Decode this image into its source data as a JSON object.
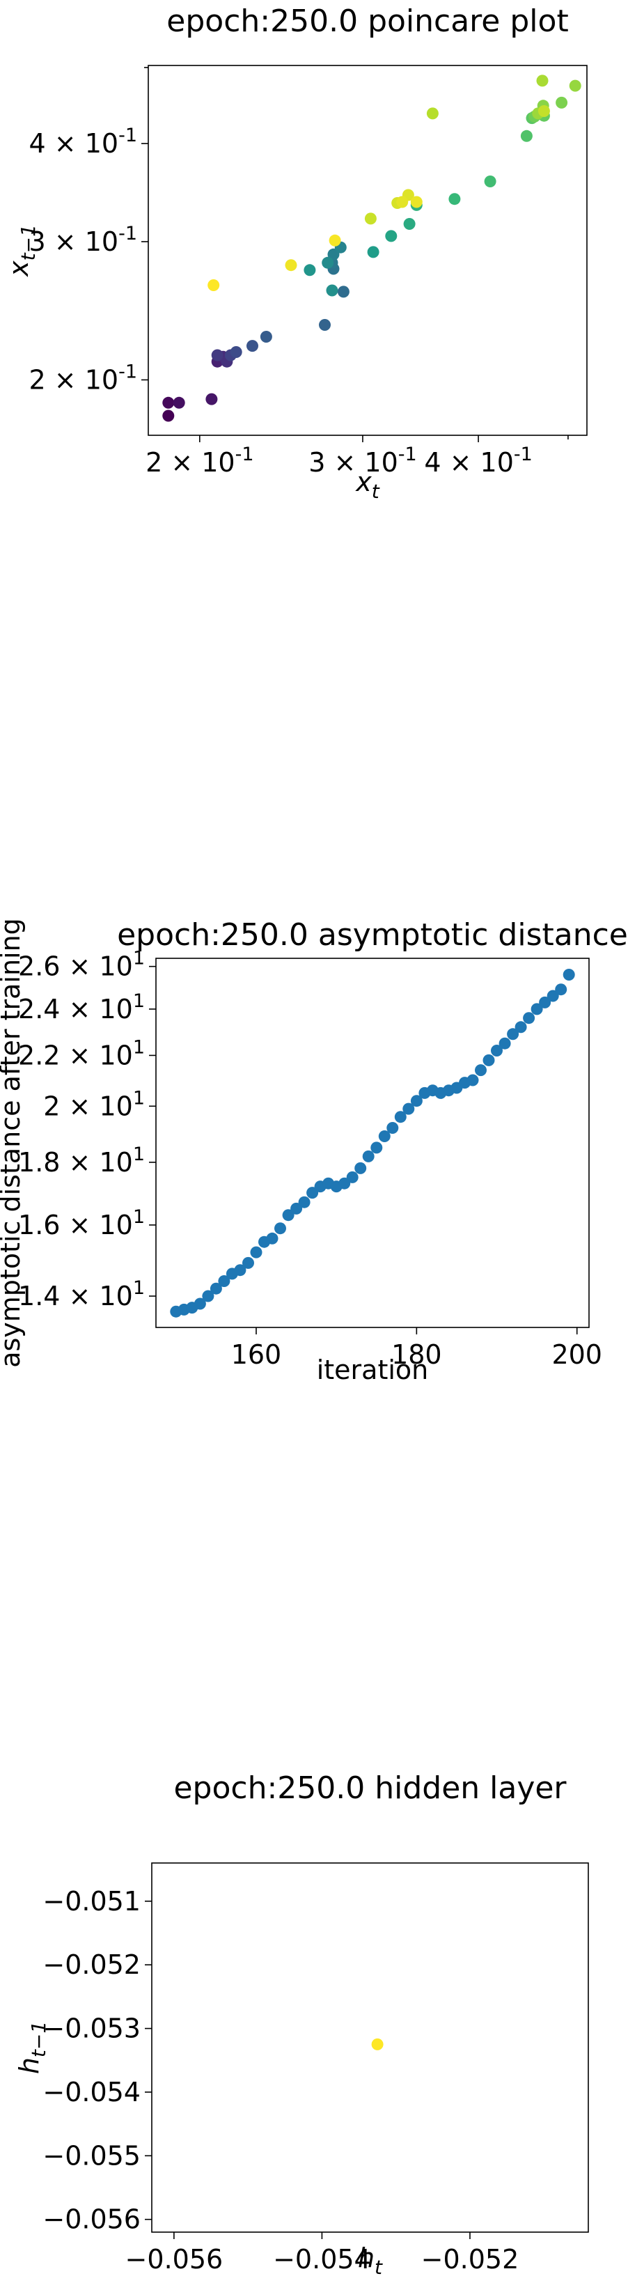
{
  "chart_data": [
    {
      "type": "scatter",
      "title": "epoch:250.0 poincare plot",
      "xlabel": "x_t",
      "ylabel": "x_{t-1}",
      "xscale": "log",
      "yscale": "log",
      "xlim": [
        0.176,
        0.524
      ],
      "ylim": [
        0.17,
        0.503
      ],
      "xticks": [
        {
          "value": 0.2,
          "label": "2 × 10^-1"
        },
        {
          "value": 0.3,
          "label": "3 × 10^-1"
        },
        {
          "value": 0.4,
          "label": "4 × 10^-1"
        }
      ],
      "yticks": [
        {
          "value": 0.2,
          "label": "2 × 10^-1"
        },
        {
          "value": 0.3,
          "label": "3 × 10^-1"
        },
        {
          "value": 0.4,
          "label": "4 × 10^-1"
        }
      ],
      "colormap": "viridis",
      "points": [
        {
          "x": 0.185,
          "y": 0.18,
          "c": 0.0
        },
        {
          "x": 0.185,
          "y": 0.187,
          "c": 0.02
        },
        {
          "x": 0.19,
          "y": 0.187,
          "c": 0.04
        },
        {
          "x": 0.206,
          "y": 0.189,
          "c": 0.06
        },
        {
          "x": 0.209,
          "y": 0.211,
          "c": 0.09
        },
        {
          "x": 0.212,
          "y": 0.214,
          "c": 0.12
        },
        {
          "x": 0.214,
          "y": 0.211,
          "c": 0.14
        },
        {
          "x": 0.209,
          "y": 0.215,
          "c": 0.17
        },
        {
          "x": 0.216,
          "y": 0.215,
          "c": 0.2
        },
        {
          "x": 0.219,
          "y": 0.217,
          "c": 0.23
        },
        {
          "x": 0.228,
          "y": 0.221,
          "c": 0.26
        },
        {
          "x": 0.236,
          "y": 0.227,
          "c": 0.29
        },
        {
          "x": 0.273,
          "y": 0.235,
          "c": 0.32
        },
        {
          "x": 0.286,
          "y": 0.259,
          "c": 0.35
        },
        {
          "x": 0.279,
          "y": 0.277,
          "c": 0.38
        },
        {
          "x": 0.278,
          "y": 0.282,
          "c": 0.4
        },
        {
          "x": 0.279,
          "y": 0.289,
          "c": 0.43
        },
        {
          "x": 0.284,
          "y": 0.295,
          "c": 0.45
        },
        {
          "x": 0.275,
          "y": 0.282,
          "c": 0.48
        },
        {
          "x": 0.278,
          "y": 0.26,
          "c": 0.5
        },
        {
          "x": 0.263,
          "y": 0.276,
          "c": 0.52
        },
        {
          "x": 0.308,
          "y": 0.291,
          "c": 0.55
        },
        {
          "x": 0.322,
          "y": 0.305,
          "c": 0.58
        },
        {
          "x": 0.337,
          "y": 0.316,
          "c": 0.61
        },
        {
          "x": 0.343,
          "y": 0.334,
          "c": 0.64
        },
        {
          "x": 0.377,
          "y": 0.34,
          "c": 0.67
        },
        {
          "x": 0.412,
          "y": 0.358,
          "c": 0.69
        },
        {
          "x": 0.451,
          "y": 0.409,
          "c": 0.72
        },
        {
          "x": 0.457,
          "y": 0.431,
          "c": 0.74
        },
        {
          "x": 0.471,
          "y": 0.434,
          "c": 0.76
        },
        {
          "x": 0.46,
          "y": 0.433,
          "c": 0.78
        },
        {
          "x": 0.492,
          "y": 0.451,
          "c": 0.8
        },
        {
          "x": 0.47,
          "y": 0.447,
          "c": 0.82
        },
        {
          "x": 0.509,
          "y": 0.474,
          "c": 0.84
        },
        {
          "x": 0.464,
          "y": 0.437,
          "c": 0.85
        },
        {
          "x": 0.469,
          "y": 0.481,
          "c": 0.87
        },
        {
          "x": 0.357,
          "y": 0.437,
          "c": 0.89
        },
        {
          "x": 0.471,
          "y": 0.44,
          "c": 0.91
        },
        {
          "x": 0.306,
          "y": 0.321,
          "c": 0.92
        },
        {
          "x": 0.327,
          "y": 0.336,
          "c": 0.94
        },
        {
          "x": 0.336,
          "y": 0.344,
          "c": 0.95
        },
        {
          "x": 0.331,
          "y": 0.337,
          "c": 0.96
        },
        {
          "x": 0.343,
          "y": 0.337,
          "c": 0.97
        },
        {
          "x": 0.251,
          "y": 0.28,
          "c": 0.98
        },
        {
          "x": 0.28,
          "y": 0.301,
          "c": 0.99
        },
        {
          "x": 0.207,
          "y": 0.264,
          "c": 1.0
        }
      ]
    },
    {
      "type": "scatter",
      "title": "epoch:250.0 asymptotic distance",
      "xlabel": "iteration",
      "ylabel": "asymptotic distance after training",
      "xscale": "linear",
      "yscale": "log",
      "xlim": [
        147.5,
        201.5
      ],
      "ylim": [
        13.2,
        26.4
      ],
      "xticks": [
        {
          "value": 160,
          "label": "160"
        },
        {
          "value": 180,
          "label": "180"
        },
        {
          "value": 200,
          "label": "200"
        }
      ],
      "yticks": [
        {
          "value": 14,
          "label": "1.4 × 10^1"
        },
        {
          "value": 16,
          "label": "1.6 × 10^1"
        },
        {
          "value": 18,
          "label": "1.8 × 10^1"
        },
        {
          "value": 20,
          "label": "2 × 10^1"
        },
        {
          "value": 22,
          "label": "2.2 × 10^1"
        },
        {
          "value": 24,
          "label": "2.4 × 10^1"
        },
        {
          "value": 26,
          "label": "2.6 × 10^1"
        }
      ],
      "color": "#1f77b4",
      "x": [
        150,
        151,
        152,
        153,
        154,
        155,
        156,
        157,
        158,
        159,
        160,
        161,
        162,
        163,
        164,
        165,
        166,
        167,
        168,
        169,
        170,
        171,
        172,
        173,
        174,
        175,
        176,
        177,
        178,
        179,
        180,
        181,
        182,
        183,
        184,
        185,
        186,
        187,
        188,
        189,
        190,
        191,
        192,
        193,
        194,
        195,
        196,
        197,
        198,
        199
      ],
      "y": [
        13.6,
        13.65,
        13.7,
        13.8,
        14.0,
        14.2,
        14.4,
        14.6,
        14.7,
        14.9,
        15.2,
        15.5,
        15.6,
        15.9,
        16.3,
        16.5,
        16.7,
        17.0,
        17.2,
        17.3,
        17.2,
        17.3,
        17.5,
        17.8,
        18.2,
        18.5,
        18.9,
        19.2,
        19.6,
        19.9,
        20.2,
        20.5,
        20.6,
        20.5,
        20.6,
        20.7,
        20.9,
        21.0,
        21.4,
        21.8,
        22.2,
        22.5,
        22.9,
        23.2,
        23.6,
        24.0,
        24.3,
        24.6,
        24.9,
        25.6
      ]
    },
    {
      "type": "scatter",
      "title": "epoch:250.0 hidden layer",
      "xlabel": "h_t",
      "ylabel": "h_{t-1}",
      "xscale": "linear",
      "yscale": "linear",
      "xlim": [
        -0.0563,
        -0.0504
      ],
      "ylim": [
        -0.0562,
        -0.0504
      ],
      "xticks": [
        {
          "value": -0.056,
          "label": "−0.056"
        },
        {
          "value": -0.054,
          "label": "−0.054"
        },
        {
          "value": -0.052,
          "label": "−0.052"
        }
      ],
      "yticks": [
        {
          "value": -0.051,
          "label": "−0.051"
        },
        {
          "value": -0.052,
          "label": "−0.052"
        },
        {
          "value": -0.053,
          "label": "−0.053"
        },
        {
          "value": -0.054,
          "label": "−0.054"
        },
        {
          "value": -0.055,
          "label": "−0.055"
        },
        {
          "value": -0.056,
          "label": "−0.056"
        }
      ],
      "color": "#fde725",
      "points": [
        {
          "x": -0.05325,
          "y": -0.05325
        }
      ]
    }
  ]
}
